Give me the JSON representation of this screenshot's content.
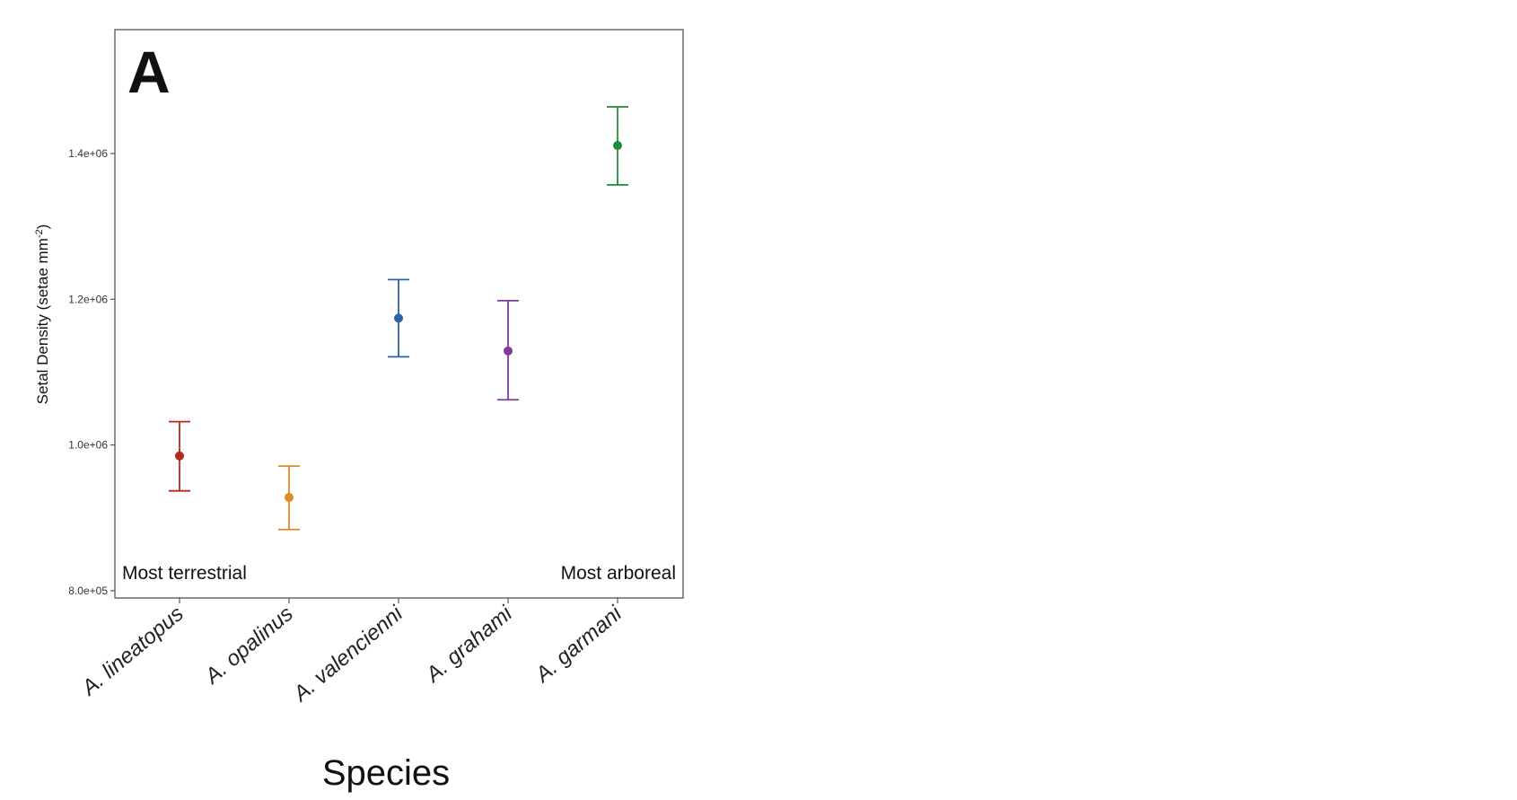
{
  "chart_data": {
    "type": "scatter",
    "panel_label": "A",
    "xlabel": "Species",
    "ylabel": "Setal Density (setae mm",
    "ylabel_sup": "-2",
    "ylabel_close": ")",
    "ylim": [
      790000,
      1570000
    ],
    "yticks": [
      800000,
      1000000,
      1200000,
      1400000
    ],
    "ytick_labels": [
      "8.0e+05",
      "1.0e+06",
      "1.2e+06",
      "1.4e+06"
    ],
    "grid": false,
    "categories": [
      "A. lineatopus",
      "A. opalinus",
      "A. valencienni",
      "A. grahami",
      "A. garmani"
    ],
    "points": [
      {
        "category": "A. lineatopus",
        "value": 985000,
        "lower": 937000,
        "upper": 1032000,
        "color": "#b5281e"
      },
      {
        "category": "A. opalinus",
        "value": 928000,
        "lower": 884000,
        "upper": 971000,
        "color": "#e28a2a"
      },
      {
        "category": "A. valencienni",
        "value": 1174000,
        "lower": 1121000,
        "upper": 1227000,
        "color": "#2a63a8"
      },
      {
        "category": "A. grahami",
        "value": 1129000,
        "lower": 1062000,
        "upper": 1198000,
        "color": "#7e3c9e"
      },
      {
        "category": "A. garmani",
        "value": 1411000,
        "lower": 1357000,
        "upper": 1464000,
        "color": "#1f8a3c"
      }
    ],
    "annotations": {
      "left": "Most terrestrial",
      "right": "Most arboreal"
    }
  }
}
